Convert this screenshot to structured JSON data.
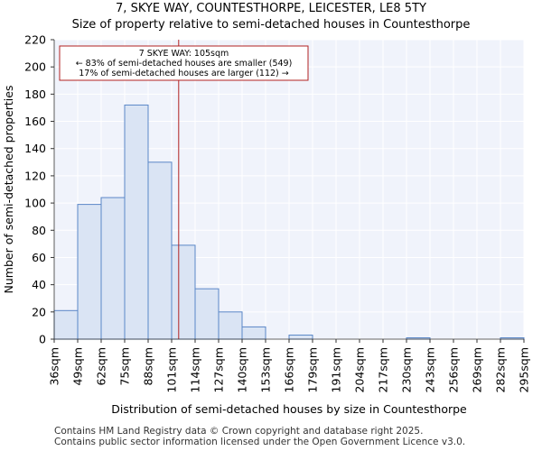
{
  "title_line1": "7, SKYE WAY, COUNTESTHORPE, LEICESTER, LE8 5TY",
  "title_line2": "Size of property relative to semi-detached houses in Countesthorpe",
  "footer_line1": "Contains HM Land Registry data © Crown copyright and database right 2025.",
  "footer_line2": "Contains public sector information licensed under the Open Government Licence v3.0.",
  "colors": {
    "bar_fill": "#dae4f4",
    "bar_stroke": "#5b87c7",
    "marker": "#b22222",
    "plot_bg": "#f0f3fb",
    "grid": "#ffffff"
  },
  "chart_data": {
    "type": "bar",
    "xlabel": "Distribution of semi-detached houses by size in Countesthorpe",
    "ylabel": "Number of semi-detached properties",
    "ylim": [
      0,
      220
    ],
    "yticks": [
      0,
      20,
      40,
      60,
      80,
      100,
      120,
      140,
      160,
      180,
      200,
      220
    ],
    "bin_edges": [
      "36sqm",
      "49sqm",
      "62sqm",
      "75sqm",
      "88sqm",
      "101sqm",
      "114sqm",
      "127sqm",
      "140sqm",
      "153sqm",
      "166sqm",
      "179sqm",
      "191sqm",
      "204sqm",
      "217sqm",
      "230sqm",
      "243sqm",
      "256sqm",
      "269sqm",
      "282sqm",
      "295sqm"
    ],
    "values": [
      21,
      99,
      104,
      172,
      130,
      69,
      37,
      20,
      9,
      0,
      3,
      0,
      0,
      0,
      0,
      1,
      0,
      0,
      0,
      1
    ],
    "marker_value_sqm": 105,
    "marker_bin_position": 5.3,
    "annotation": {
      "line1": "7 SKYE WAY: 105sqm",
      "line2": "← 83% of semi-detached houses are smaller (549)",
      "line3": "17% of semi-detached houses are larger (112) →"
    },
    "grid": true
  }
}
